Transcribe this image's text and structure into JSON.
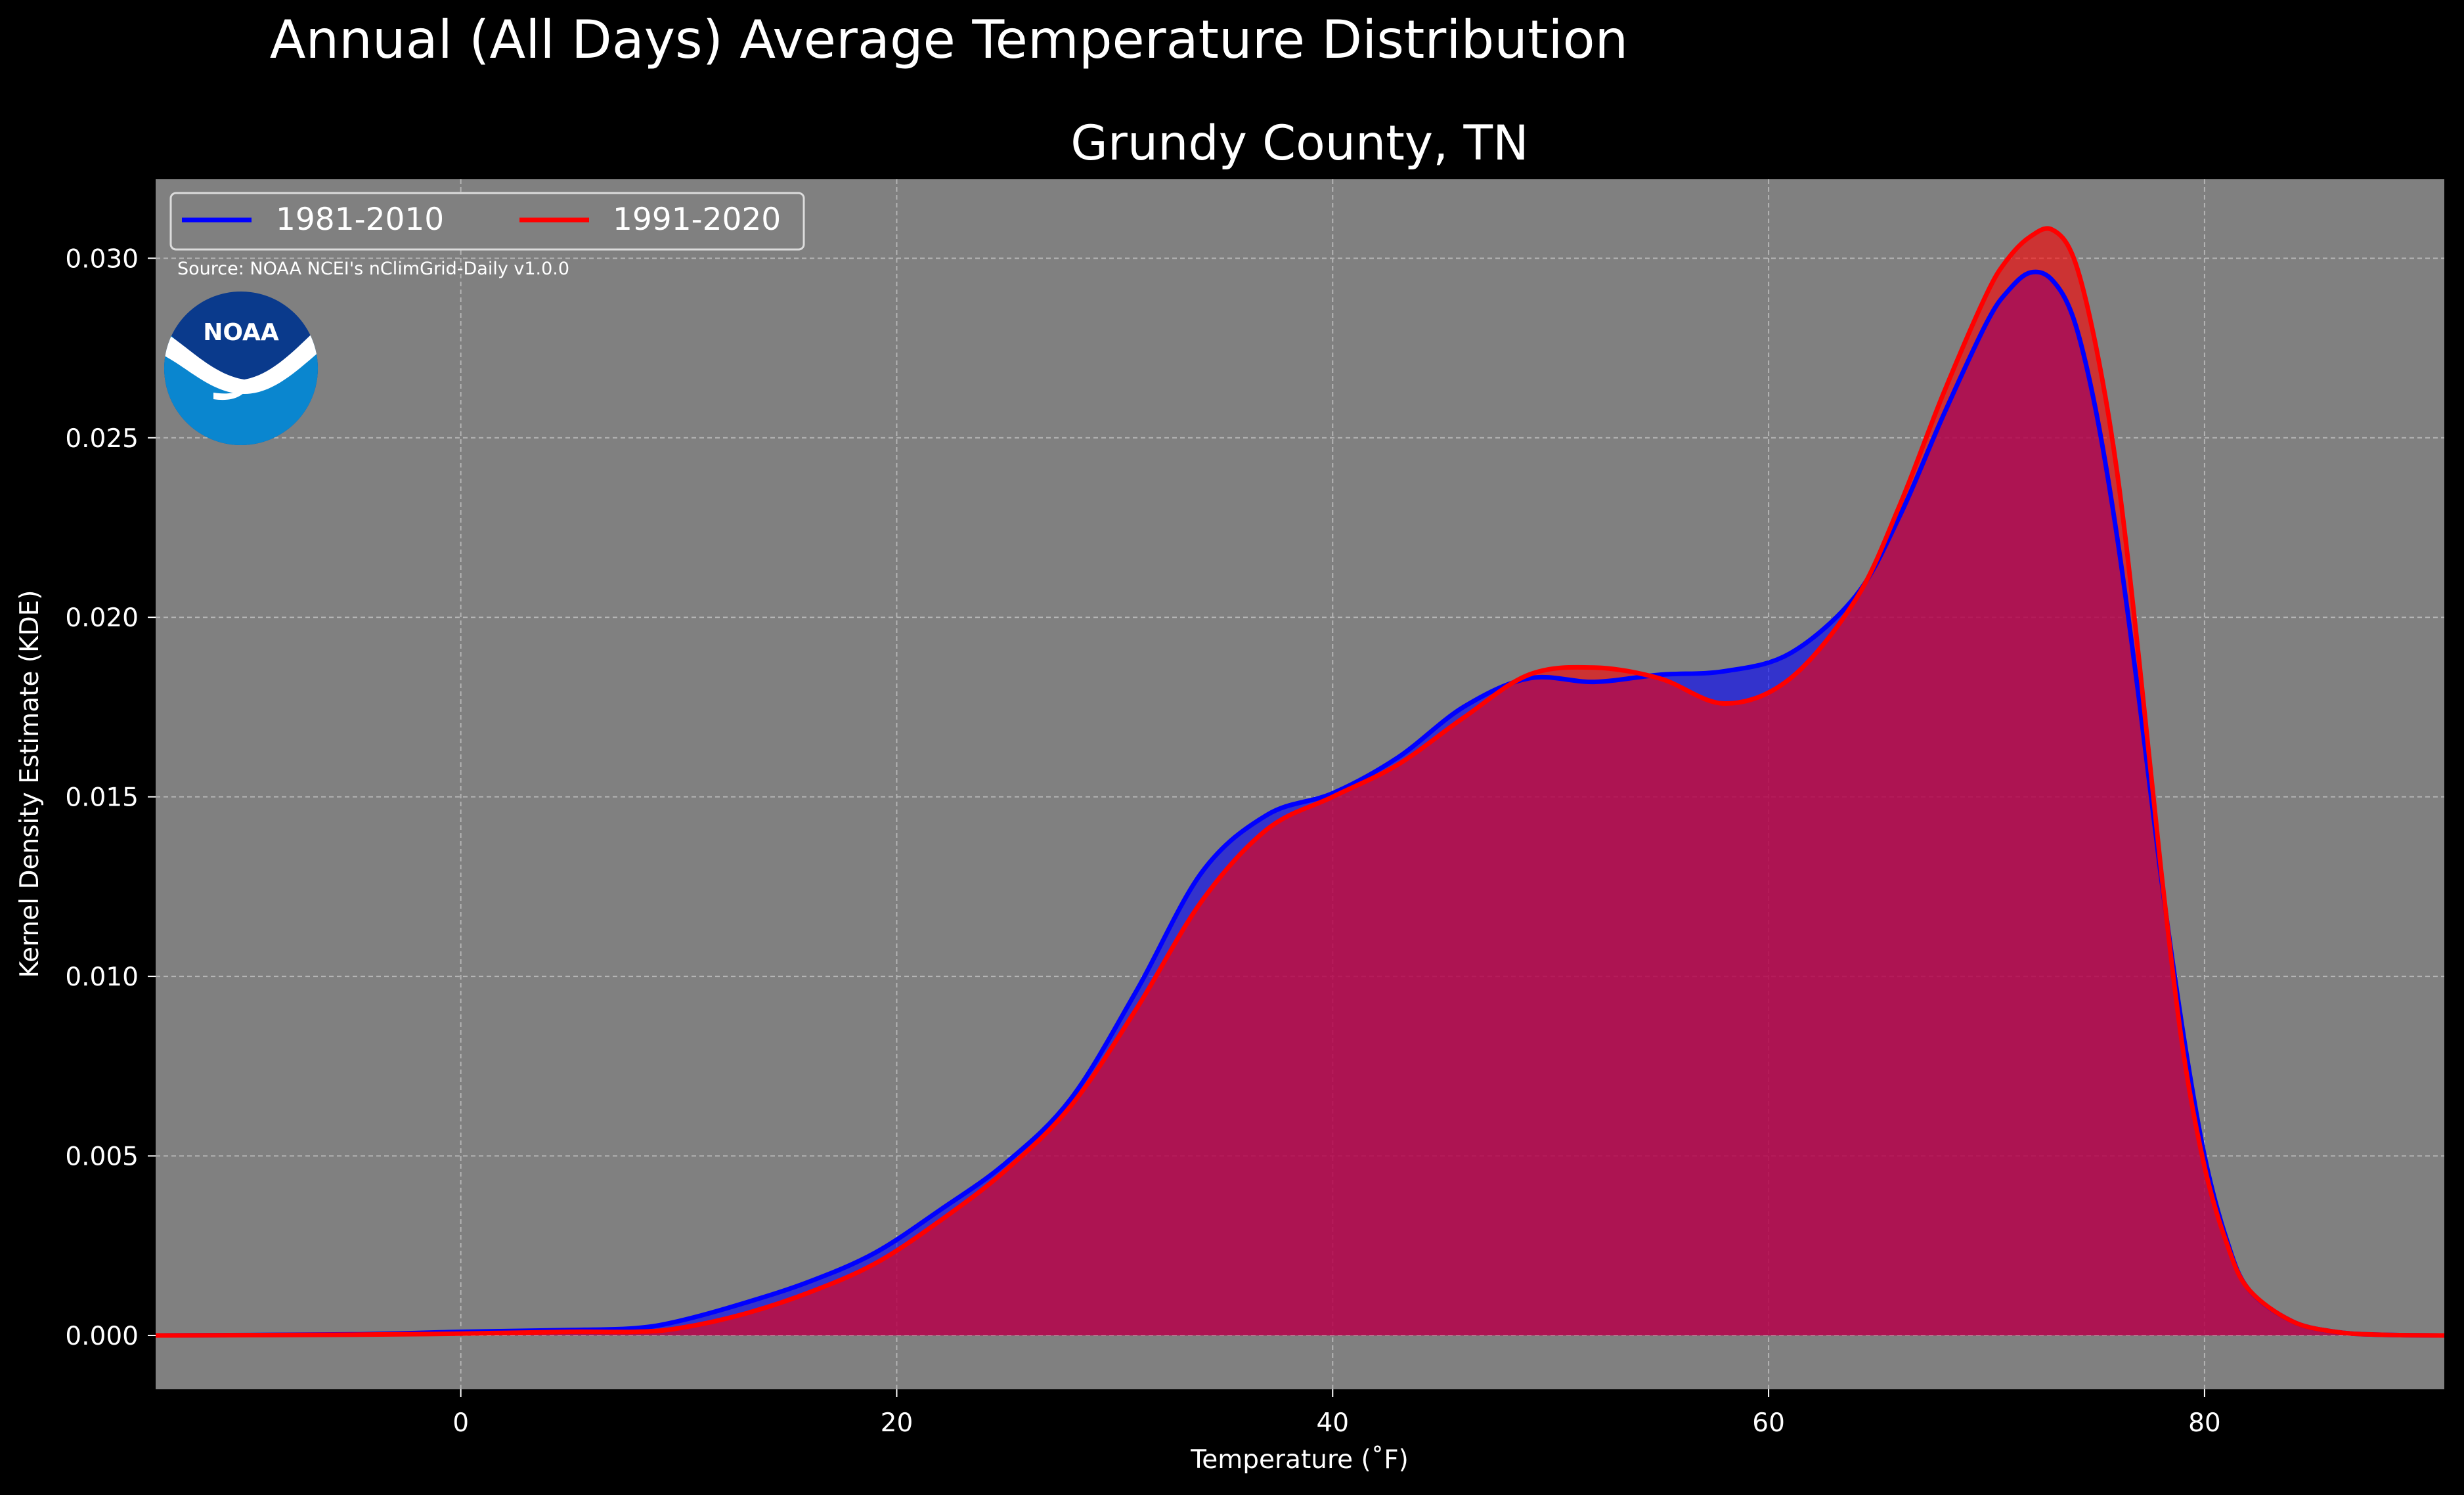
{
  "figure": {
    "suptitle": "Annual (All Days) Average Temperature Distribution",
    "background": "#000000",
    "plot_background": "#808080"
  },
  "source_note": "Source: NOAA NCEI's nClimGrid-Daily v1.0.0",
  "logo": {
    "text": "NOAA",
    "icon": "noaa-logo",
    "colors": {
      "dark": "#0a3a8c",
      "light": "#0a86cf"
    }
  },
  "chart_data": {
    "type": "area",
    "title": "Grundy County, TN",
    "xlabel": "Temperature (˚F)",
    "ylabel": "Kernel Density Estimate (KDE)",
    "xlim": [
      -14,
      91
    ],
    "ylim": [
      -0.0015,
      0.0322
    ],
    "xticks": [
      0,
      20,
      40,
      60,
      80
    ],
    "xtick_labels": [
      "0",
      "20",
      "40",
      "60",
      "80"
    ],
    "yticks": [
      0,
      0.005,
      0.01,
      0.015,
      0.02,
      0.025,
      0.03
    ],
    "ytick_labels": [
      "0.000",
      "0.005",
      "0.010",
      "0.015",
      "0.020",
      "0.025",
      "0.030"
    ],
    "grid": true,
    "legend": {
      "placement": "top-left",
      "ncol": 2
    },
    "series": [
      {
        "name": "1981-2010",
        "color": "#0000ff",
        "x": [
          -14,
          -5,
          0,
          5,
          8,
          10,
          13,
          16,
          19,
          22,
          25,
          28,
          31,
          34,
          37,
          40,
          43,
          46,
          49,
          52,
          55,
          58,
          61,
          64,
          66,
          68,
          70,
          71,
          72,
          73,
          74,
          75,
          76,
          77,
          78,
          79,
          80,
          81,
          82,
          84,
          86,
          88,
          91
        ],
        "y": [
          0,
          3e-05,
          0.0001,
          0.00015,
          0.0002,
          0.0004,
          0.0009,
          0.0015,
          0.0023,
          0.0035,
          0.0048,
          0.0066,
          0.0096,
          0.0129,
          0.0145,
          0.0151,
          0.0161,
          0.0175,
          0.0183,
          0.0182,
          0.0184,
          0.0185,
          0.019,
          0.0206,
          0.0228,
          0.0256,
          0.0282,
          0.0291,
          0.0296,
          0.0294,
          0.0283,
          0.0258,
          0.0222,
          0.0177,
          0.0128,
          0.0085,
          0.005,
          0.0027,
          0.0013,
          0.0004,
          0.0001,
          2e-05,
          0
        ]
      },
      {
        "name": "1991-2020",
        "color": "#ff0000",
        "x": [
          -14,
          -5,
          0,
          5,
          8,
          10,
          13,
          16,
          19,
          22,
          25,
          28,
          31,
          34,
          37,
          40,
          43,
          46,
          49,
          52,
          55,
          58,
          61,
          64,
          66,
          68,
          70,
          71,
          72,
          73,
          74,
          75,
          76,
          77,
          78,
          79,
          80,
          81,
          82,
          84,
          86,
          88,
          91
        ],
        "y": [
          0,
          2e-05,
          5e-05,
          0.0001,
          0.0001,
          0.0002,
          0.0006,
          0.0012,
          0.002,
          0.0032,
          0.0046,
          0.0064,
          0.0091,
          0.0121,
          0.0141,
          0.015,
          0.0159,
          0.0172,
          0.0184,
          0.0186,
          0.0183,
          0.0176,
          0.0183,
          0.0205,
          0.0231,
          0.0262,
          0.029,
          0.03,
          0.0306,
          0.0308,
          0.03,
          0.0276,
          0.024,
          0.0188,
          0.013,
          0.008,
          0.0047,
          0.0026,
          0.0013,
          0.0004,
          0.0001,
          2e-05,
          0
        ]
      }
    ]
  }
}
